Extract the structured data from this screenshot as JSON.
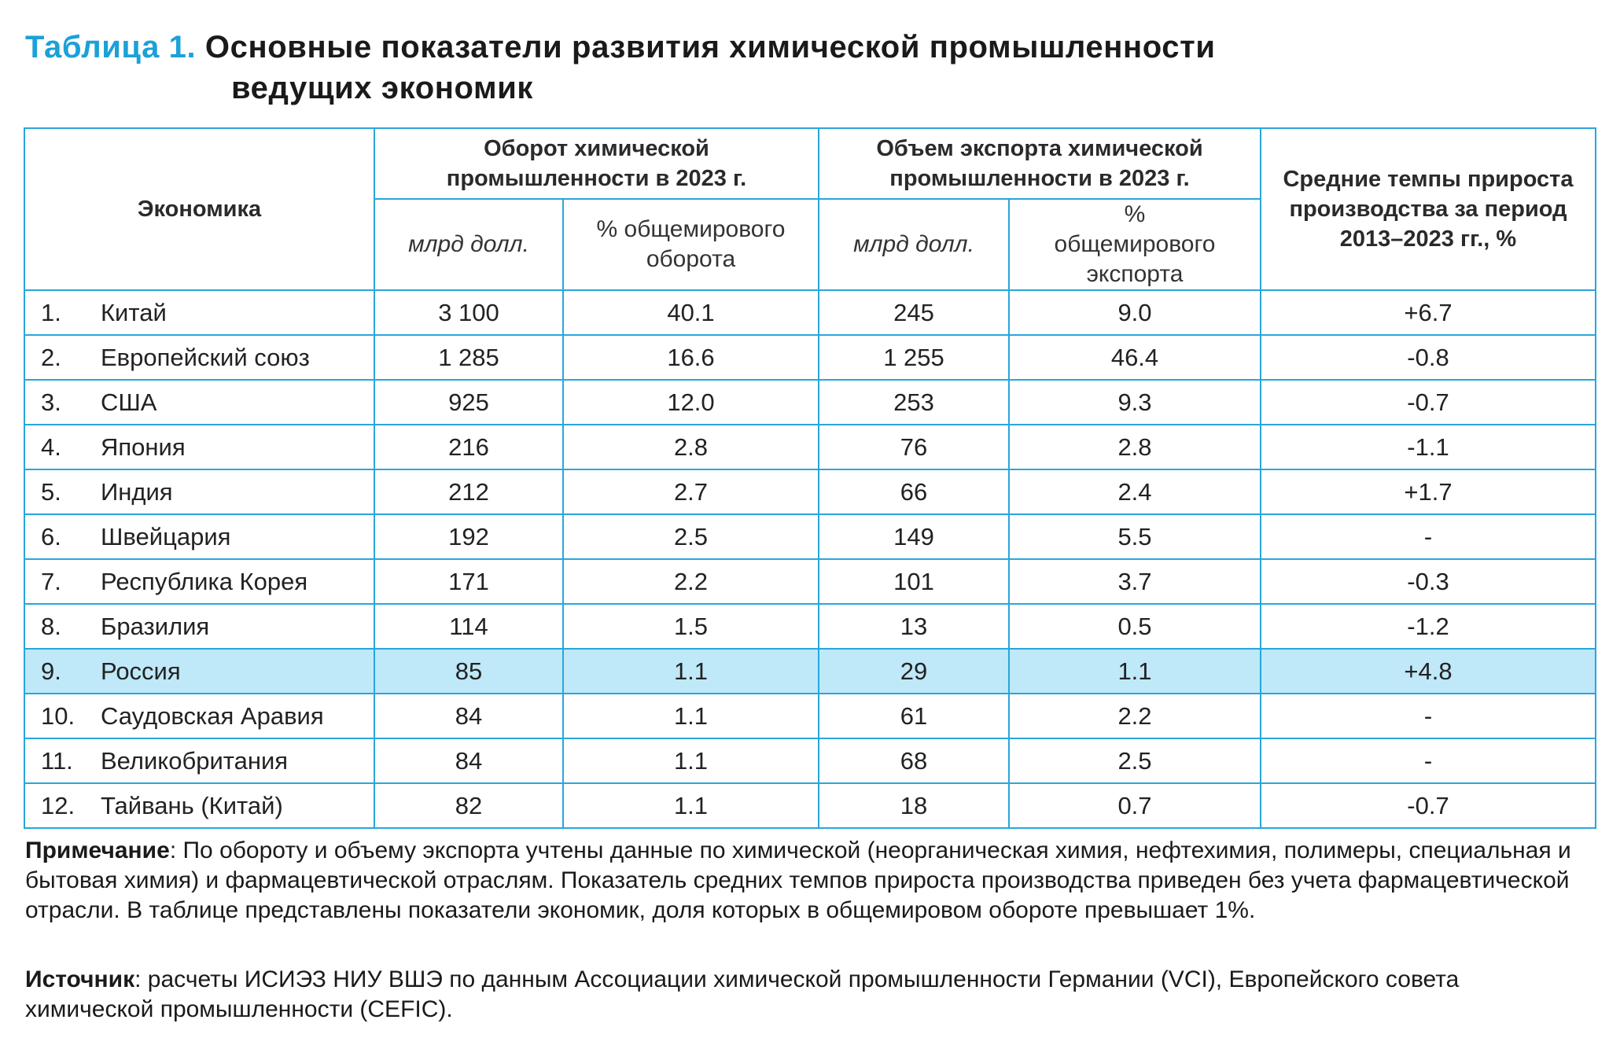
{
  "title": {
    "label": "Таблица 1.",
    "text_line1": "Основные показатели развития химической промышленности",
    "text_line2": "ведущих экономик"
  },
  "colors": {
    "accent": "#1ba1d8",
    "border": "#29a6dc",
    "highlight_row": "#bfe8f9"
  },
  "headers": {
    "economy": "Экономика",
    "turnover_group": "Оборот химической промышленности в 2023 г.",
    "export_group": "Объем экспорта химической промышленности в 2023 г.",
    "growth": "Средние темпы прироста производства за период 2013–2023 гг., %",
    "bn_usd": "млрд долл.",
    "pct_turnover": "% общемирового оборота",
    "pct_export": "% общемирового экспорта"
  },
  "chart_data": {
    "type": "table",
    "columns": [
      "Экономика",
      "Оборот химической промышленности в 2023 г. — млрд долл.",
      "Оборот химической промышленности в 2023 г. — % общемирового оборота",
      "Объем экспорта химической промышленности в 2023 г. — млрд долл.",
      "Объем экспорта химической промышленности в 2023 г. — % общемирового экспорта",
      "Средние темпы прироста производства за период 2013–2023 гг., %"
    ],
    "rows": [
      {
        "n": "1.",
        "economy": "Китай",
        "turnover": "3 100",
        "turnover_pct": "40.1",
        "export": "245",
        "export_pct": "9.0",
        "growth": "+6.7"
      },
      {
        "n": "2.",
        "economy": "Европейский союз",
        "turnover": "1 285",
        "turnover_pct": "16.6",
        "export": "1 255",
        "export_pct": "46.4",
        "growth": "-0.8"
      },
      {
        "n": "3.",
        "economy": "США",
        "turnover": "925",
        "turnover_pct": "12.0",
        "export": "253",
        "export_pct": "9.3",
        "growth": "-0.7"
      },
      {
        "n": "4.",
        "economy": "Япония",
        "turnover": "216",
        "turnover_pct": "2.8",
        "export": "76",
        "export_pct": "2.8",
        "growth": "-1.1"
      },
      {
        "n": "5.",
        "economy": "Индия",
        "turnover": "212",
        "turnover_pct": "2.7",
        "export": "66",
        "export_pct": "2.4",
        "growth": "+1.7"
      },
      {
        "n": "6.",
        "economy": "Швейцария",
        "turnover": "192",
        "turnover_pct": "2.5",
        "export": "149",
        "export_pct": "5.5",
        "growth": "-"
      },
      {
        "n": "7.",
        "economy": "Республика Корея",
        "turnover": "171",
        "turnover_pct": "2.2",
        "export": "101",
        "export_pct": "3.7",
        "growth": "-0.3"
      },
      {
        "n": "8.",
        "economy": "Бразилия",
        "turnover": "114",
        "turnover_pct": "1.5",
        "export": "13",
        "export_pct": "0.5",
        "growth": "-1.2"
      },
      {
        "n": "9.",
        "economy": "Россия",
        "turnover": "85",
        "turnover_pct": "1.1",
        "export": "29",
        "export_pct": "1.1",
        "growth": "+4.8",
        "highlighted": true
      },
      {
        "n": "10.",
        "economy": "Саудовская Аравия",
        "turnover": "84",
        "turnover_pct": "1.1",
        "export": "61",
        "export_pct": "2.2",
        "growth": "-"
      },
      {
        "n": "11.",
        "economy": "Великобритания",
        "turnover": "84",
        "turnover_pct": "1.1",
        "export": "68",
        "export_pct": "2.5",
        "growth": "-"
      },
      {
        "n": "12.",
        "economy": "Тайвань (Китай)",
        "turnover": "82",
        "turnover_pct": "1.1",
        "export": "18",
        "export_pct": "0.7",
        "growth": "-0.7"
      }
    ]
  },
  "note": {
    "label": "Примечание",
    "text": ": По обороту и объему экспорта учтены данные по химической (неорганическая химия, нефтехимия, полимеры, специальная и бытовая химия) и фармацевтической отраслям. Показатель средних темпов прироста производства приведен без учета фармацевтической отрасли. В таблице представлены показатели экономик, доля которых в общемировом обороте превышает 1%."
  },
  "source": {
    "label": "Источник",
    "text": ": расчеты ИСИЭЗ НИУ ВШЭ по данным Ассоциации химической промышленности Германии (VCI), Европейского совета химической промышленности (CEFIC)."
  }
}
